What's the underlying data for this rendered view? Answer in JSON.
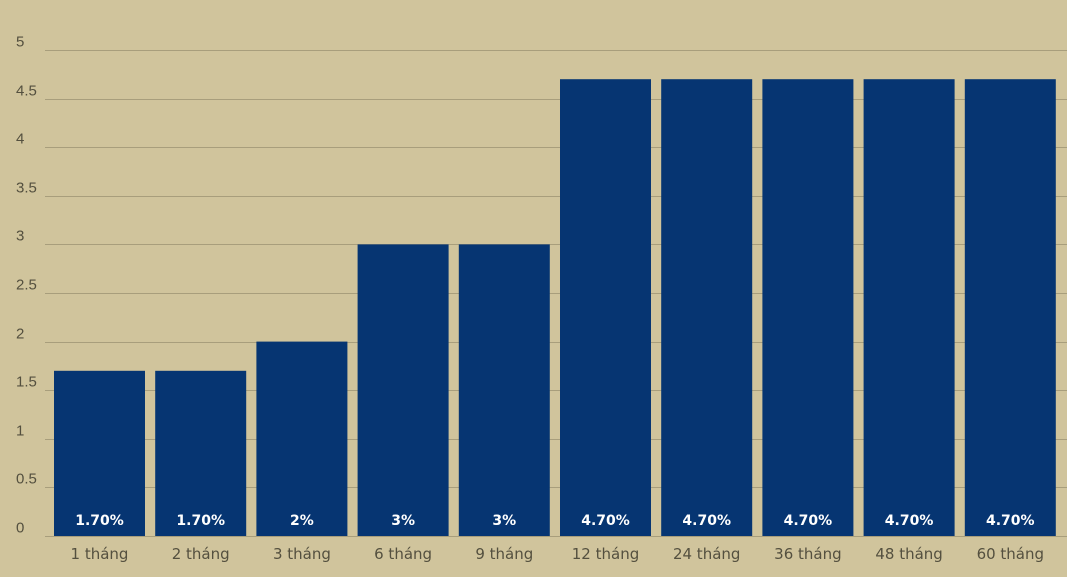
{
  "chart_data": {
    "type": "bar",
    "categories": [
      "1 tháng",
      "2 tháng",
      "3 tháng",
      "6 tháng",
      "9 tháng",
      "12 tháng",
      "24 tháng",
      "36 tháng",
      "48 tháng",
      "60 tháng"
    ],
    "values": [
      1.7,
      1.7,
      2,
      3,
      3,
      4.7,
      4.7,
      4.7,
      4.7,
      4.7
    ],
    "data_labels": [
      "1.70%",
      "1.70%",
      "2%",
      "3%",
      "3%",
      "4.70%",
      "4.70%",
      "4.70%",
      "4.70%",
      "4.70%"
    ],
    "y_ticks": [
      "0",
      "0.5",
      "1",
      "1.5",
      "2",
      "2.5",
      "3",
      "3.5",
      "4",
      "4.5",
      "5"
    ],
    "ylim": [
      0,
      5
    ],
    "grid": true,
    "legend": "none",
    "title": "",
    "xlabel": "",
    "ylabel": "",
    "colors": {
      "background": "#D0C49C",
      "bar": "#063572",
      "grid": "#A89E7C",
      "tick_text": "#54503F",
      "data_label": "#FFFFFF"
    }
  }
}
